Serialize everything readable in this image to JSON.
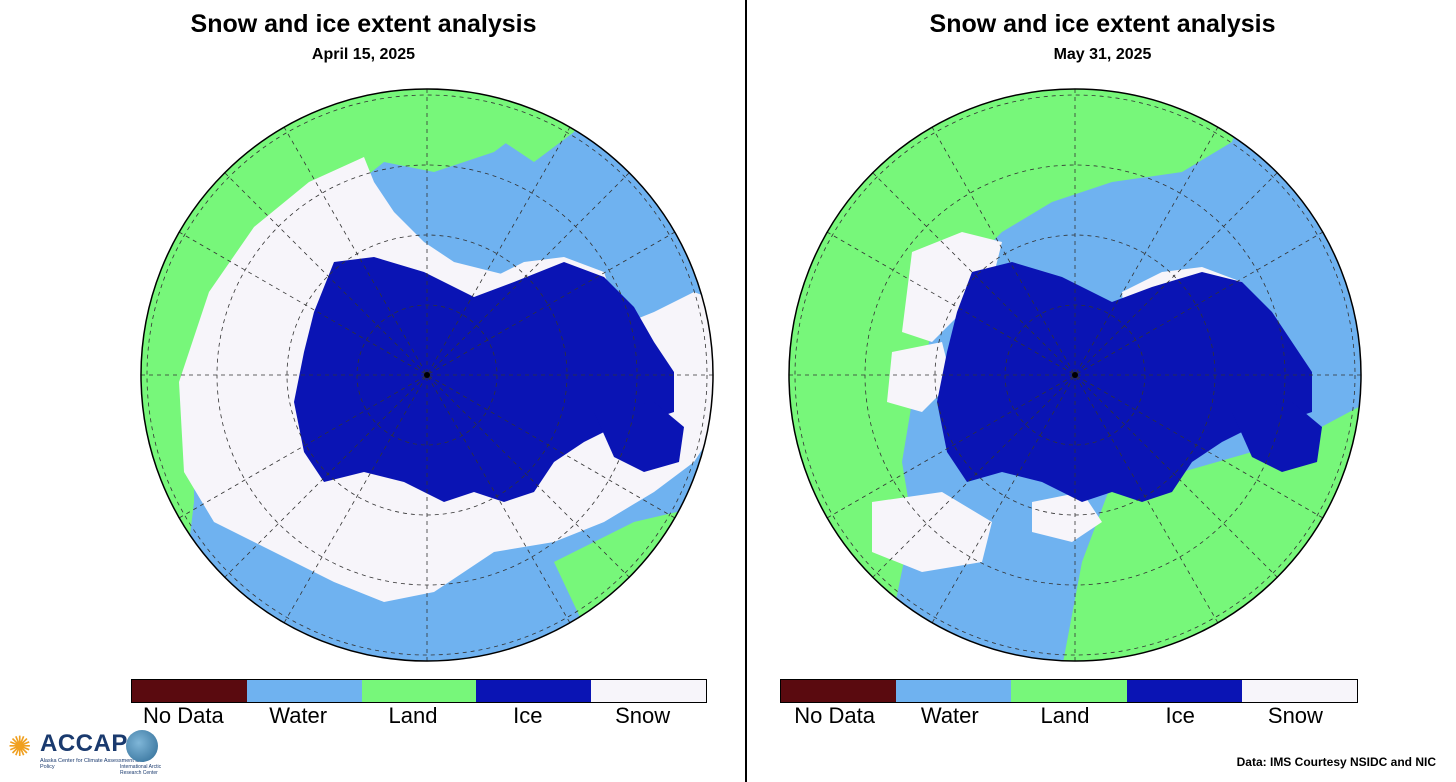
{
  "panels": [
    {
      "title": "Snow and ice extent analysis",
      "date": "April 15, 2025"
    },
    {
      "title": "Snow and ice extent analysis",
      "date": "May 31, 2025"
    }
  ],
  "legend": [
    {
      "label": "No Data",
      "color": "#5a0a0f"
    },
    {
      "label": "Water",
      "color": "#6fb2f0"
    },
    {
      "label": "Land",
      "color": "#77f77a"
    },
    {
      "label": "Ice",
      "color": "#0a14b4"
    },
    {
      "label": "Snow",
      "color": "#f7f5fa"
    }
  ],
  "logo": {
    "brand": "ACCAP",
    "subtitle": "Alaska Center for Climate Assessment and Policy",
    "subtitle_2": "International Arctic Research Center",
    "icon": "sun-icon"
  },
  "credit": "Data: IMS Courtesy NSIDC and NIC"
}
